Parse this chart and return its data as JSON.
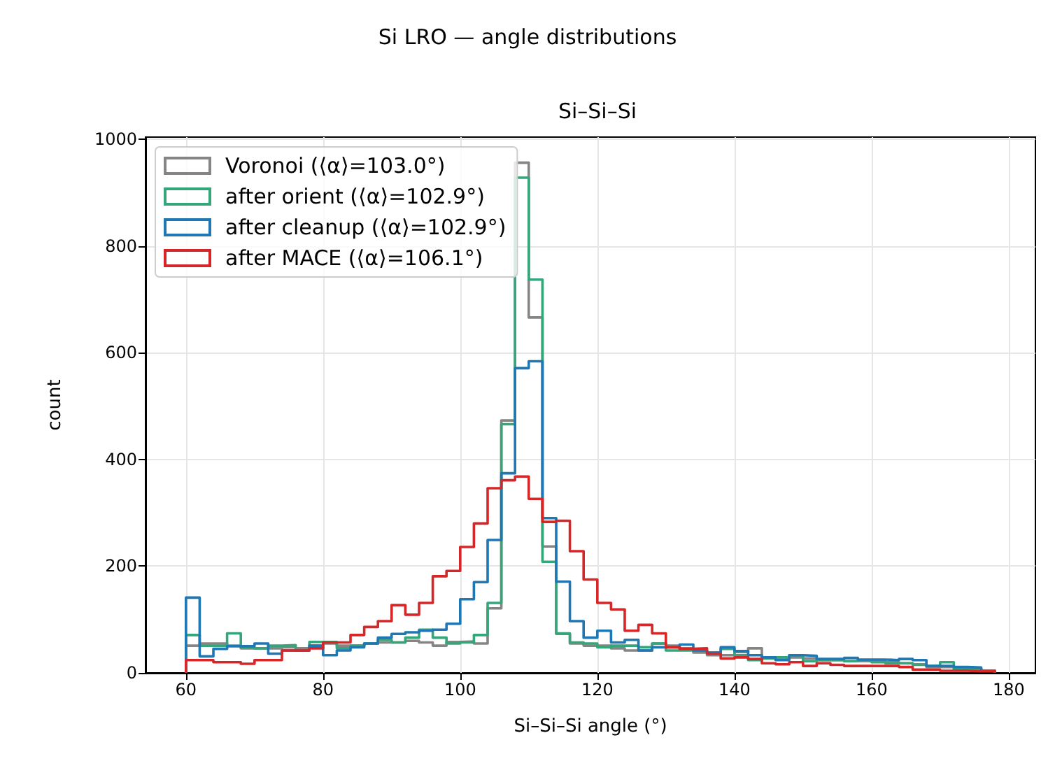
{
  "chart_data": {
    "type": "histogram",
    "title": "Si LRO — angle distributions",
    "subtitle": "Si–Si–Si",
    "xlabel": "Si–Si–Si angle (°)",
    "ylabel": "count",
    "bins": [
      60,
      62,
      64,
      66,
      68,
      70,
      72,
      74,
      76,
      78,
      80,
      82,
      84,
      86,
      88,
      90,
      92,
      94,
      96,
      98,
      100,
      102,
      104,
      106,
      108,
      110,
      112,
      114,
      116,
      118,
      120,
      122,
      124,
      126,
      128,
      130,
      132,
      134,
      136,
      138,
      140,
      142,
      144,
      146,
      148,
      150,
      152,
      154,
      156,
      158,
      160,
      162,
      164,
      166,
      168,
      170,
      172,
      174,
      176,
      178
    ],
    "series": [
      {
        "name": "Voronoi (⟨α⟩=103.0°)",
        "color": "#858585",
        "values": [
          51,
          55,
          55,
          51,
          46,
          46,
          46,
          48,
          46,
          51,
          55,
          51,
          51,
          55,
          57,
          57,
          60,
          57,
          51,
          58,
          59,
          55,
          121,
          473,
          956,
          666,
          237,
          73,
          55,
          51,
          51,
          46,
          42,
          42,
          55,
          51,
          46,
          38,
          33,
          33,
          39,
          46,
          29,
          27,
          29,
          27,
          24,
          24,
          22,
          22,
          22,
          20,
          18,
          16,
          11,
          11,
          9,
          8,
          4
        ]
      },
      {
        "name": "after orient (⟨α⟩=102.9°)",
        "color": "#35a679",
        "values": [
          71,
          51,
          51,
          74,
          48,
          46,
          51,
          52,
          42,
          58,
          58,
          46,
          51,
          55,
          62,
          57,
          66,
          81,
          66,
          55,
          57,
          71,
          131,
          466,
          928,
          737,
          208,
          74,
          57,
          55,
          48,
          51,
          51,
          48,
          55,
          42,
          42,
          42,
          38,
          45,
          33,
          24,
          27,
          29,
          33,
          22,
          24,
          24,
          22,
          24,
          20,
          18,
          18,
          15,
          13,
          20,
          7,
          6,
          4
        ]
      },
      {
        "name": "after cleanup (⟨α⟩=102.9°)",
        "color": "#1f77b4",
        "values": [
          141,
          31,
          45,
          50,
          50,
          55,
          36,
          42,
          42,
          51,
          33,
          42,
          48,
          55,
          66,
          73,
          76,
          79,
          81,
          92,
          138,
          170,
          249,
          374,
          571,
          584,
          290,
          171,
          97,
          66,
          79,
          57,
          62,
          42,
          48,
          48,
          53,
          42,
          38,
          48,
          41,
          33,
          29,
          24,
          33,
          32,
          26,
          26,
          28,
          25,
          25,
          24,
          26,
          24,
          13,
          13,
          11,
          10,
          4
        ]
      },
      {
        "name": "after MACE (⟨α⟩=106.1°)",
        "color": "#d62728",
        "values": [
          24,
          24,
          20,
          20,
          17,
          24,
          24,
          42,
          42,
          46,
          57,
          57,
          71,
          86,
          97,
          127,
          109,
          131,
          181,
          191,
          236,
          280,
          346,
          361,
          368,
          326,
          283,
          285,
          228,
          175,
          131,
          119,
          79,
          90,
          74,
          48,
          45,
          46,
          36,
          27,
          29,
          26,
          18,
          16,
          20,
          13,
          18,
          15,
          13,
          13,
          13,
          13,
          11,
          6,
          6,
          4,
          4,
          3,
          3
        ]
      }
    ],
    "xlim": [
      54.1,
      183.9
    ],
    "ylim": [
      0,
      1004
    ],
    "xticks": [
      60,
      80,
      100,
      120,
      140,
      160,
      180
    ],
    "yticks": [
      0,
      200,
      400,
      600,
      800,
      1000
    ],
    "grid": true,
    "legend": "top left"
  }
}
